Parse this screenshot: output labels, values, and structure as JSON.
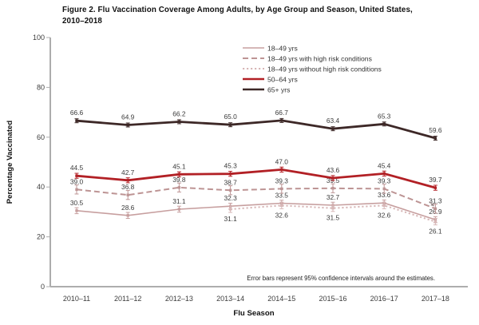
{
  "chart_data": {
    "type": "line",
    "title": "Figure 2. Flu Vaccination Coverage Among Adults, by Age Group and Season, United States, 2010–2018",
    "xlabel": "Flu Season",
    "ylabel": "Percentage Vaccinated",
    "footnote": "Error bars represent 95% confidence intervals around the estimates.",
    "ylim": [
      0,
      100
    ],
    "yticks": [
      0,
      20,
      40,
      60,
      80,
      100
    ],
    "grid": false,
    "legend_position": "inside-top-center",
    "categories": [
      "2010–11",
      "2011–12",
      "2012–13",
      "2013–14",
      "2014–15",
      "2015–16",
      "2016–17",
      "2017–18"
    ],
    "series": [
      {
        "name": "18–49 yrs",
        "style": "solid",
        "color": "#c79f9f",
        "line_width": 1.6,
        "ci_halfwidth": 1.2,
        "label_side": "above",
        "values": [
          30.5,
          28.6,
          31.1,
          32.3,
          33.5,
          32.7,
          33.6,
          26.9
        ]
      },
      {
        "name": "18–49 yrs with high risk conditions",
        "style": "dashed",
        "color": "#bd9494",
        "line_width": 2.0,
        "ci_halfwidth": 1.8,
        "label_side": "above",
        "values": [
          39.0,
          36.8,
          39.8,
          38.7,
          39.3,
          39.5,
          39.3,
          31.3
        ]
      },
      {
        "name": "18–49 yrs without high risk conditions",
        "style": "dotted",
        "color": "#d7b7b7",
        "line_width": 2.0,
        "ci_halfwidth": 1.3,
        "label_side": "below",
        "values": [
          null,
          null,
          null,
          31.1,
          32.6,
          31.5,
          32.6,
          26.1
        ]
      },
      {
        "name": "50–64 yrs",
        "style": "solid",
        "color": "#b22025",
        "line_width": 2.8,
        "ci_halfwidth": 1.0,
        "label_side": "above",
        "values": [
          44.5,
          42.7,
          45.1,
          45.3,
          47.0,
          43.6,
          45.4,
          39.7
        ]
      },
      {
        "name": "65+ yrs",
        "style": "solid",
        "color": "#3d2827",
        "line_width": 2.8,
        "ci_halfwidth": 0.8,
        "label_side": "above",
        "values": [
          66.6,
          64.9,
          66.2,
          65.0,
          66.7,
          63.4,
          65.3,
          59.6
        ]
      }
    ],
    "annotations": [
      {
        "type": "leader-arrow",
        "series": "18–49 yrs with high risk conditions",
        "category": "2017–18"
      }
    ]
  }
}
